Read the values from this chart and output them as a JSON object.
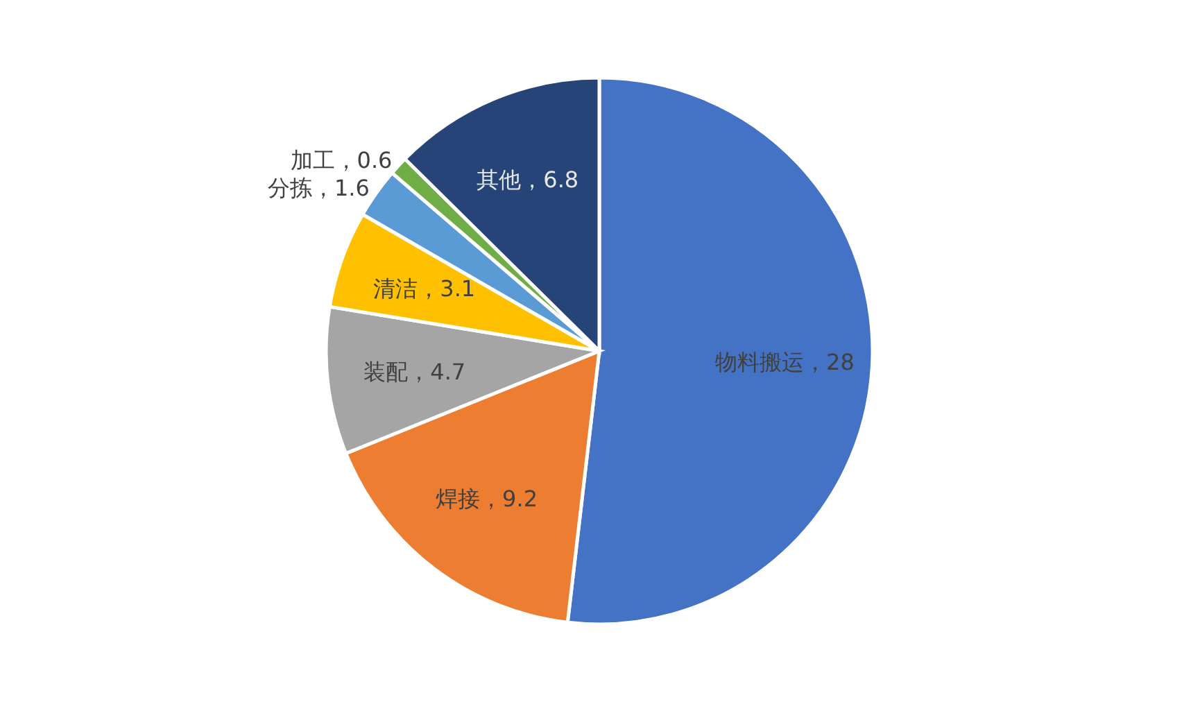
{
  "chart_data": {
    "type": "pie",
    "categories": [
      "物料搬运",
      "焊接",
      "装配",
      "清洁",
      "分拣",
      "加工",
      "其他"
    ],
    "values": [
      28,
      9.2,
      4.7,
      3.1,
      1.6,
      0.6,
      6.8
    ],
    "colors": [
      "#4472c4",
      "#ed7d31",
      "#a5a5a5",
      "#ffc000",
      "#5b9bd5",
      "#70ad47",
      "#264478"
    ],
    "value_labels": [
      "，28",
      "，9.2",
      "，4.7",
      "，3.1",
      "，1.6",
      "，0.6",
      "，6.8"
    ]
  }
}
